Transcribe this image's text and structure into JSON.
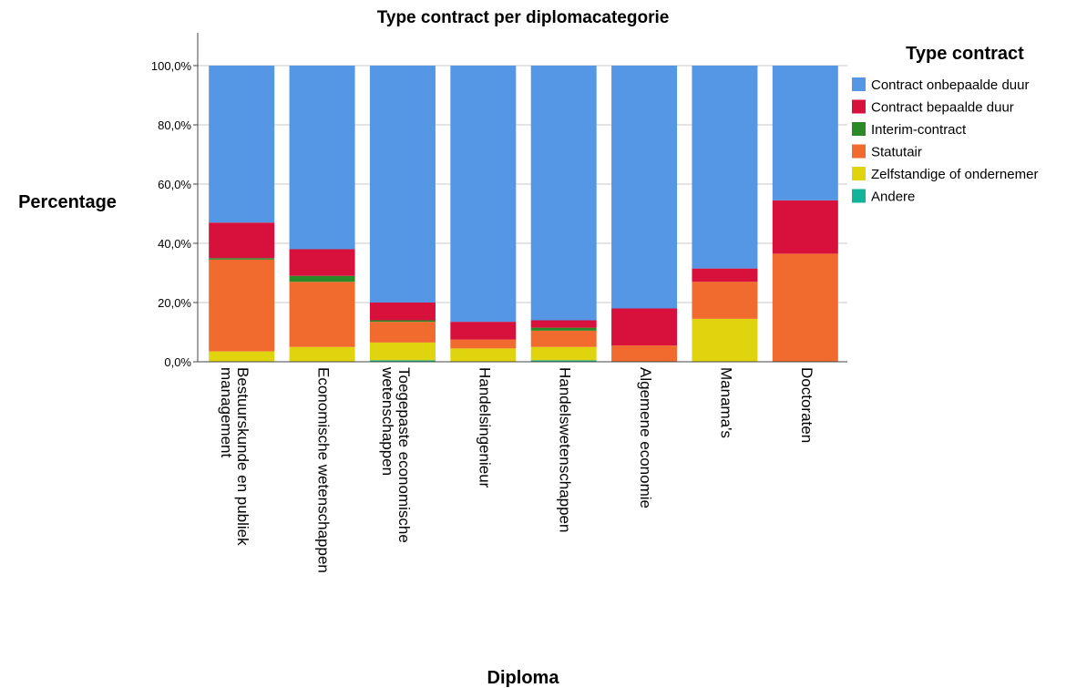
{
  "chart_data": {
    "type": "bar",
    "stacked": true,
    "title": "Type contract per diplomacategorie",
    "xlabel": "Diploma",
    "ylabel": "Percentage",
    "ylim": [
      0,
      110
    ],
    "yticks": [
      "0,0%",
      "20,0%",
      "40,0%",
      "60,0%",
      "80,0%",
      "100,0%"
    ],
    "ytick_values": [
      0,
      20,
      40,
      60,
      80,
      100
    ],
    "grid": true,
    "legend_title": "Type contract",
    "legend_position": "right",
    "categories": [
      [
        "Bestuurskunde en publiek",
        "management"
      ],
      [
        "Economische wetenschappen"
      ],
      [
        "Toegepaste economische",
        "wetenschappen"
      ],
      [
        "Handelsingenieur"
      ],
      [
        "Handelswetenschappen"
      ],
      [
        "Algemene economie"
      ],
      [
        "Manama's"
      ],
      [
        "Doctoraten"
      ]
    ],
    "series": [
      {
        "name": "Andere",
        "color": "#11b39b",
        "values": [
          0.0,
          0.0,
          0.5,
          0.0,
          0.5,
          0.0,
          0.0,
          0.0
        ]
      },
      {
        "name": "Zelfstandige of ondernemer",
        "color": "#e0d40e",
        "values": [
          3.5,
          5.0,
          6.0,
          4.5,
          4.5,
          0.0,
          14.5,
          0.0
        ]
      },
      {
        "name": "Statutair",
        "color": "#f26b2e",
        "values": [
          31.0,
          22.0,
          7.0,
          3.0,
          5.5,
          5.5,
          12.5,
          36.5
        ]
      },
      {
        "name": "Interim-contract",
        "color": "#2a8a27",
        "values": [
          0.5,
          2.0,
          0.5,
          0.0,
          1.0,
          0.0,
          0.0,
          0.0
        ]
      },
      {
        "name": "Contract bepaalde duur",
        "color": "#d8103c",
        "values": [
          12.0,
          9.0,
          6.0,
          6.0,
          2.5,
          12.5,
          4.5,
          18.0
        ]
      },
      {
        "name": "Contract onbepaalde duur",
        "color": "#5597e4",
        "values": [
          53.0,
          62.0,
          80.0,
          86.5,
          86.0,
          82.0,
          68.5,
          45.5
        ]
      }
    ],
    "legend_order": [
      "Contract onbepaalde duur",
      "Contract bepaalde duur",
      "Interim-contract",
      "Statutair",
      "Zelfstandige of ondernemer",
      "Andere"
    ]
  }
}
